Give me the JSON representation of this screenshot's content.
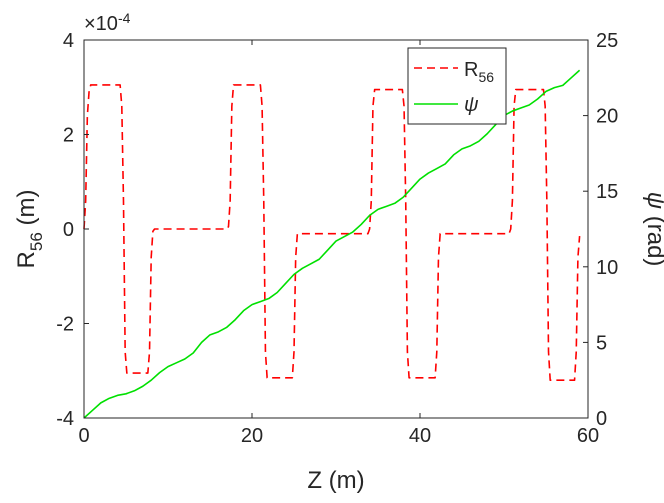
{
  "chart_data": {
    "type": "line",
    "xlabel": "Z (m)",
    "ylabel_left": {
      "main": "R",
      "sub": "56",
      "unit": " (m)"
    },
    "ylabel_right": {
      "symbol": "ψ",
      "unit": " (rad)"
    },
    "exponent_label": {
      "prefix": "×10",
      "sup": "-4"
    },
    "xlim": [
      0,
      60
    ],
    "ylim_left": [
      -4,
      4
    ],
    "ylim_right": [
      0,
      25
    ],
    "x_ticks": [
      0,
      20,
      40,
      60
    ],
    "y_left_ticks": [
      -4,
      -2,
      0,
      2,
      4
    ],
    "y_right_ticks": [
      0,
      5,
      10,
      15,
      20,
      25
    ],
    "grid": false,
    "legend_position": "top-right",
    "series": [
      {
        "name": {
          "main": "R",
          "sub": "56"
        },
        "axis": "left",
        "style": "dashed",
        "color": "#ff0000",
        "x": [
          0,
          0.2,
          0.4,
          0.6,
          0.8,
          1.0,
          4.3,
          4.5,
          4.7,
          4.9,
          5.1,
          7.6,
          7.8,
          8.0,
          8.2,
          8.4,
          17.0,
          17.2,
          17.4,
          17.6,
          17.8,
          21.0,
          21.2,
          21.4,
          21.6,
          21.8,
          24.8,
          25.0,
          25.2,
          25.4,
          25.6,
          33.8,
          34.0,
          34.2,
          34.4,
          34.6,
          37.9,
          38.1,
          38.3,
          38.5,
          38.7,
          41.8,
          42.0,
          42.2,
          42.4,
          42.6,
          50.6,
          50.8,
          51.0,
          51.2,
          51.4,
          54.7,
          54.9,
          55.1,
          55.3,
          55.5,
          58.4,
          58.6,
          58.8,
          59.0
        ],
        "y": [
          0.0,
          0.6,
          2.4,
          2.9,
          3.05,
          3.05,
          3.05,
          2.6,
          0.6,
          -2.6,
          -3.05,
          -3.05,
          -2.6,
          -0.6,
          -0.05,
          0.0,
          0.0,
          0.05,
          0.6,
          2.6,
          3.05,
          3.05,
          2.6,
          0.6,
          -2.6,
          -3.15,
          -3.15,
          -2.6,
          -0.6,
          -0.1,
          -0.1,
          -0.1,
          0.0,
          0.6,
          2.6,
          2.95,
          2.95,
          2.6,
          0.6,
          -2.6,
          -3.15,
          -3.15,
          -2.6,
          -0.6,
          -0.1,
          -0.1,
          -0.1,
          0.0,
          0.6,
          2.6,
          2.95,
          2.95,
          2.6,
          0.6,
          -2.6,
          -3.2,
          -3.2,
          -2.6,
          -0.6,
          -0.15
        ]
      },
      {
        "name": {
          "main": "ψ"
        },
        "axis": "right",
        "style": "solid",
        "color": "#00e000",
        "x": [
          0,
          1,
          2,
          3,
          4,
          5,
          6,
          7,
          8,
          9,
          10,
          11,
          12,
          13,
          14,
          15,
          16,
          17,
          18,
          19,
          20,
          21,
          22,
          23,
          24,
          25,
          26,
          27,
          28,
          29,
          30,
          31,
          32,
          33,
          34,
          35,
          36,
          37,
          38,
          39,
          40,
          41,
          42,
          43,
          44,
          45,
          46,
          47,
          48,
          49,
          50,
          51,
          52,
          53,
          54,
          55,
          56,
          57,
          58,
          59
        ],
        "y": [
          0.0,
          0.5,
          1.0,
          1.3,
          1.5,
          1.6,
          1.8,
          2.1,
          2.5,
          3.0,
          3.4,
          3.65,
          3.9,
          4.3,
          5.0,
          5.5,
          5.7,
          6.0,
          6.5,
          7.1,
          7.5,
          7.7,
          7.9,
          8.3,
          8.9,
          9.5,
          9.9,
          10.2,
          10.5,
          11.1,
          11.7,
          12.0,
          12.3,
          12.8,
          13.4,
          13.8,
          14.0,
          14.2,
          14.6,
          15.2,
          15.8,
          16.2,
          16.5,
          16.8,
          17.4,
          17.8,
          18.0,
          18.3,
          18.8,
          19.4,
          20.0,
          20.3,
          20.5,
          20.7,
          21.1,
          21.6,
          21.85,
          22.0,
          22.5,
          23.0
        ]
      }
    ]
  }
}
